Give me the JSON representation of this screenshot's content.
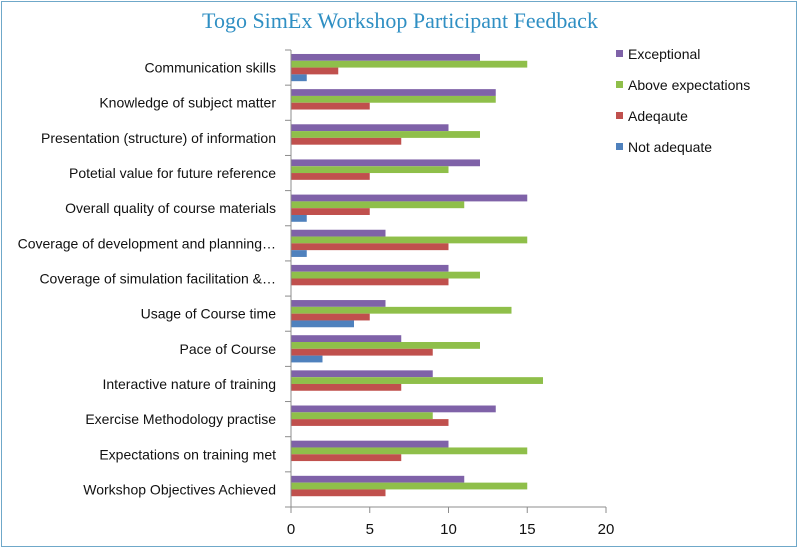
{
  "chart_data": {
    "type": "bar",
    "orientation": "horizontal",
    "title": "Togo SimEx Workshop Participant Feedback",
    "xlabel": "",
    "ylabel": "",
    "xlim": [
      0,
      20
    ],
    "xticks": [
      0,
      5,
      10,
      15,
      20
    ],
    "grid": false,
    "legend_position": "right",
    "categories": [
      "Communication skills",
      "Knowledge of subject matter",
      "Presentation (structure) of information",
      "Potetial value for future reference",
      "Overall quality of course materials",
      "Coverage of development and planning…",
      "Coverage of simulation facilitation &…",
      "Usage of Course time",
      "Pace of Course",
      "Interactive nature of training",
      "Exercise Methodology practise",
      "Expectations on training met",
      "Workshop Objectives Achieved"
    ],
    "series": [
      {
        "name": "Exceptional",
        "color": "#7f62a8",
        "values": [
          12,
          13,
          10,
          12,
          15,
          6,
          10,
          6,
          7,
          9,
          13,
          10,
          11
        ]
      },
      {
        "name": "Above expectations",
        "color": "#8fbf4a",
        "values": [
          15,
          13,
          12,
          10,
          11,
          15,
          12,
          14,
          12,
          16,
          9,
          15,
          15
        ]
      },
      {
        "name": "Adeqaute",
        "color": "#c0504d",
        "values": [
          3,
          5,
          7,
          5,
          5,
          10,
          10,
          5,
          9,
          7,
          10,
          7,
          6
        ]
      },
      {
        "name": "Not adequate",
        "color": "#4f81bd",
        "values": [
          1,
          0,
          0,
          0,
          1,
          1,
          0,
          4,
          2,
          0,
          0,
          0,
          0
        ]
      }
    ]
  }
}
